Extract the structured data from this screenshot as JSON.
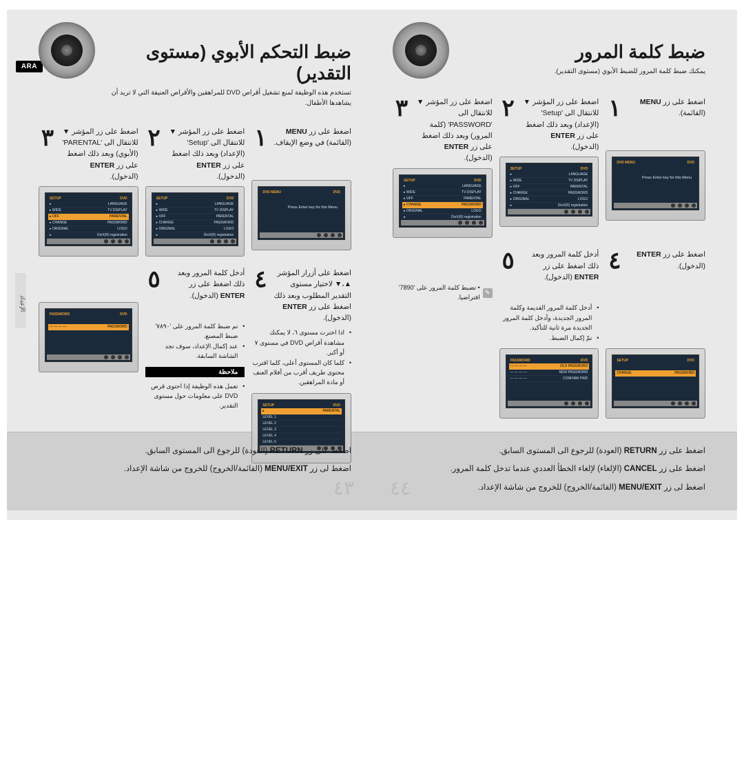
{
  "badge": "ARA",
  "side_tab": "الإعداد",
  "right": {
    "title": "ضبط التحكم الأبوي (مستوى التقدير)",
    "desc": "تستخدم هذه الوظيفة لمنع تشغيل أقراص DVD للمراهقين والأقراص العنيفة التي لا تريد أن يشاهدها الأطفال.",
    "steps": {
      "s1": {
        "num": "١",
        "text": "اضغط على زر <b>MENU</b> (القائمة) في وضع الإيقاف."
      },
      "s2": {
        "num": "٢",
        "text": "اضغط على زر المؤشر ▼ للانتقال الى 'Setup' (الإعداد) وبعد ذلك اضغط على زر <b>ENTER</b> (الدخول)."
      },
      "s3": {
        "num": "٣",
        "text": "اضغط على زر المؤشر ▼ للانتقال الى 'PARENTAL' (الأبوي) وبعد ذلك اضغط على زر <b>ENTER</b> (الدخول)."
      },
      "s4": {
        "num": "٤",
        "text": "اضغط على أزرار المؤشر ▲،▼ لاختيار مستوى التقدير المطلوب وبعد ذلك اضغط على زر <b>ENTER</b> (الدخول)."
      },
      "s5": {
        "num": "٥",
        "text": "أدخل كلمة المرور وبعد ذلك اضغط على زر <b>ENTER</b> (الدخول)."
      }
    },
    "s4_bullets": [
      "اذا اخترت مستوى ٦، لا يمكنك مشاهدة أقراص DVD في مستوى ٧ أو أكبر.",
      "كلما كان المستوى أعلى، كلما اقترب محتوى طريف أقرب من أفلام العنف أو مادة المراهقين."
    ],
    "s5_bullets": [
      "تم ضبط كلمة المرور على '٧٨٩٠' ضبط المصنع.",
      "عند إكمال الإعداد، سوف تجد الشاشة السابقة."
    ],
    "note_label": "ملاحظة",
    "note_bullets": [
      "تعمل هذه الوظيفة إذا احتوى قرص DVD على معلومات حول مستوى التقدير."
    ],
    "footer": [
      "اضغط على زر <b>RETURN</b> (العودة) للرجوع الى المستوى السابق.",
      "اضغط لى زر <b>MENU/EXIT</b> (القائمة/الخروج) للخروج من شاشة الإعداد."
    ],
    "pagenum": "٤٣"
  },
  "left": {
    "title": "ضبط كلمة المرور",
    "desc": "يمكنك ضبط كلمة المرور للضبط الأبوي (مستوى التقدير).",
    "steps": {
      "s1": {
        "num": "١",
        "text": "اضغط على زر <b>MENU</b> (القائمة)."
      },
      "s2": {
        "num": "٢",
        "text": "اضغط على زر المؤشر ▼ للانتقال الى 'Setup' (الإعداد) وبعد ذلك اضغط على زر <b>ENTER</b> (الدخول)."
      },
      "s3": {
        "num": "٣",
        "text": "اضغط على زر المؤشر ▼ للانتقال الى 'PASSWORD' (كلمة المرور) وبعد ذلك اضغط على زر <b>ENTER</b> (الدخول)."
      },
      "s4": {
        "num": "٤",
        "text": "اضغط على زر <b>ENTER</b> (الدخول)."
      },
      "s5": {
        "num": "٥",
        "text": "أدخل كلمة المرور وبعد ذلك اضغط على زر <b>ENTER</b> (الدخول)."
      }
    },
    "s5_bullets": [
      "أدخل كلمة المرور القديمة وكلمة المرور الجديدة، وأدخل كلمة المرور الجديدة مرة ثانية للتأكيد.",
      "تمّ إكمال الضبط."
    ],
    "default_note": "تضبط كلمة المرور على '7890' افتراضيا.",
    "footer": [
      "اضغط على زر <b>RETURN</b> (العودة) للرجوع الى المستوى السابق.",
      "اضغط على زر <b>CANCEL</b> (الإلغاء) لإلغاء الخطأ العددي عندما تدخل كلمة المرور.",
      "اضغط لى زر <b>MENU/EXIT</b> (القائمة/الخروج) للخروج من شاشة الإعداد."
    ],
    "pagenum": "٤٤"
  },
  "tv_menu": {
    "title_l": "DVD",
    "title_r": "SETUP",
    "rows": [
      [
        "LANGUAGE",
        "▸"
      ],
      [
        "TV DISPLAY",
        "WIDE",
        "▸"
      ],
      [
        "PARENTAL",
        "OFF",
        "▸"
      ],
      [
        "PASSWORD",
        "CHANGE",
        "▸"
      ],
      [
        "LOGO",
        "ORIGINAL",
        "▸"
      ],
      [
        "DivX(R) registration",
        "▸"
      ]
    ],
    "msg": "Press Enter key for this Menu",
    "pw_rows": [
      "OLD PASSWORD",
      "NEW PASSWORD",
      "CONFIRM PWD"
    ],
    "levels": [
      "LEVEL 1",
      "LEVEL 2",
      "LEVEL 3",
      "LEVEL 4",
      "LEVEL 5"
    ]
  }
}
